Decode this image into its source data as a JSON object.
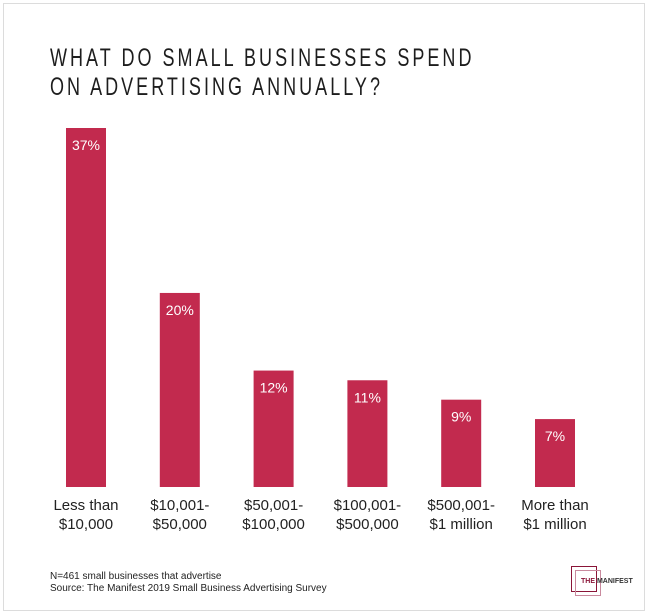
{
  "chart_data": {
    "type": "bar",
    "title": [
      "WHAT DO SMALL BUSINESSES SPEND",
      "ON ADVERTISING ANNUALLY?"
    ],
    "categories": [
      [
        "Less than",
        "$10,000"
      ],
      [
        "$10,001-",
        "$50,000"
      ],
      [
        "$50,001-",
        "$100,000"
      ],
      [
        "$100,001-",
        "$500,000"
      ],
      [
        "$500,001-",
        "$1 million"
      ],
      [
        "More than",
        "$1 million"
      ]
    ],
    "values": [
      37,
      20,
      12,
      11,
      9,
      7
    ],
    "data_labels": [
      "37%",
      "20%",
      "12%",
      "11%",
      "9%",
      "7%"
    ],
    "unit": "%",
    "ylim": [
      0,
      37
    ],
    "grid": false,
    "bar_color": "#c22a4e"
  },
  "notes": [
    "N=461 small businesses that advertise",
    "Source: The Manifest 2019 Small Business Advertising Survey"
  ],
  "logo": {
    "text_accent": "THE",
    "text_main": "MANIFEST"
  }
}
